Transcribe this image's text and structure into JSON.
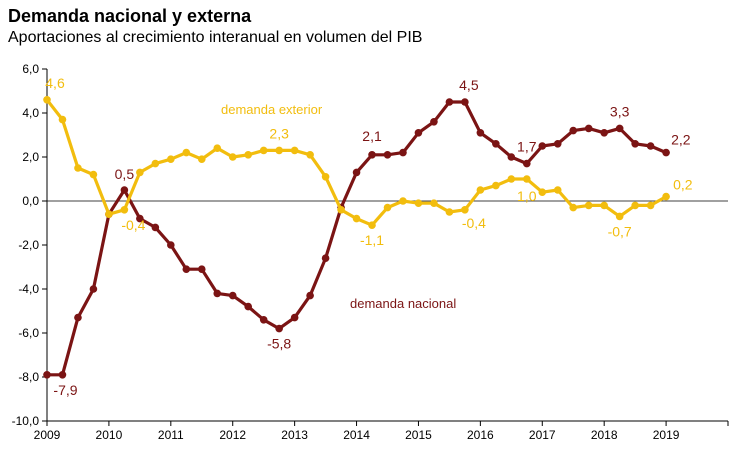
{
  "chart_data": {
    "type": "line",
    "title": "Demanda nacional y externa",
    "subtitle": "Aportaciones al crecimiento interanual en volumen del PIB",
    "xlabel": "",
    "ylabel": "",
    "ylim": [
      -10,
      6
    ],
    "yticks": [
      -10,
      -8,
      -6,
      -4,
      -2,
      0,
      2,
      4,
      6
    ],
    "ytick_labels": [
      "-10,0",
      "-8,0",
      "-6,0",
      "-4,0",
      "-2,0",
      "0,0",
      "2,0",
      "4,0",
      "6,0"
    ],
    "xlim": [
      2009,
      2020
    ],
    "xticks": [
      2009,
      2010,
      2011,
      2012,
      2013,
      2014,
      2015,
      2016,
      2017,
      2018,
      2019
    ],
    "xtick_labels": [
      "2009",
      "2010",
      "2011",
      "2012",
      "2013",
      "2014",
      "2015",
      "2016",
      "2017",
      "2018",
      "2019"
    ],
    "x": [
      2009.0,
      2009.25,
      2009.5,
      2009.75,
      2010.0,
      2010.25,
      2010.5,
      2010.75,
      2011.0,
      2011.25,
      2011.5,
      2011.75,
      2012.0,
      2012.25,
      2012.5,
      2012.75,
      2013.0,
      2013.25,
      2013.5,
      2013.75,
      2014.0,
      2014.25,
      2014.5,
      2014.75,
      2015.0,
      2015.25,
      2015.5,
      2015.75,
      2016.0,
      2016.25,
      2016.5,
      2016.75,
      2017.0,
      2017.25,
      2017.5,
      2017.75,
      2018.0,
      2018.25,
      2018.5,
      2018.75,
      2019.0
    ],
    "series": [
      {
        "name": "demanda nacional",
        "color": "#7b1414",
        "values": [
          -7.9,
          -7.9,
          -5.3,
          -4.0,
          -0.6,
          0.5,
          -0.8,
          -1.2,
          -2.0,
          -3.1,
          -3.1,
          -4.2,
          -4.3,
          -4.8,
          -5.4,
          -5.8,
          -5.3,
          -4.3,
          -2.6,
          -0.3,
          1.3,
          2.1,
          2.1,
          2.2,
          3.1,
          3.6,
          4.5,
          4.5,
          3.1,
          2.6,
          2.0,
          1.7,
          2.5,
          2.6,
          3.2,
          3.3,
          3.1,
          3.3,
          2.6,
          2.5,
          2.2
        ]
      },
      {
        "name": "demanda exterior",
        "color": "#f2bd0e",
        "values": [
          4.6,
          3.7,
          1.5,
          1.2,
          -0.6,
          -0.4,
          1.3,
          1.7,
          1.9,
          2.2,
          1.9,
          2.4,
          2.0,
          2.1,
          2.3,
          2.3,
          2.3,
          2.1,
          1.1,
          -0.4,
          -0.8,
          -1.1,
          -0.3,
          0.0,
          -0.1,
          -0.1,
          -0.5,
          -0.4,
          0.5,
          0.7,
          1.0,
          1.0,
          0.4,
          0.5,
          -0.3,
          -0.2,
          -0.2,
          -0.7,
          -0.2,
          -0.2,
          0.2
        ]
      }
    ],
    "series_labels": {
      "nacional": "demanda nacional",
      "exterior": "demanda exterior"
    },
    "annotations": [
      {
        "text": "-7,9",
        "series": "demanda nacional",
        "x": 2009.25
      },
      {
        "text": "0,5",
        "series": "demanda nacional",
        "x": 2010.25
      },
      {
        "text": "-5,8",
        "series": "demanda nacional",
        "x": 2012.75
      },
      {
        "text": "2,1",
        "series": "demanda nacional",
        "x": 2014.25
      },
      {
        "text": "4,5",
        "series": "demanda nacional",
        "x": 2015.75
      },
      {
        "text": "1,7",
        "series": "demanda nacional",
        "x": 2016.75
      },
      {
        "text": "3,3",
        "series": "demanda nacional",
        "x": 2018.25
      },
      {
        "text": "2,2",
        "series": "demanda nacional",
        "x": 2019.0
      },
      {
        "text": "4,6",
        "series": "demanda exterior",
        "x": 2009.0
      },
      {
        "text": "-0,4",
        "series": "demanda exterior",
        "x": 2010.25
      },
      {
        "text": "2,3",
        "series": "demanda exterior",
        "x": 2012.75
      },
      {
        "text": "-1,1",
        "series": "demanda exterior",
        "x": 2014.25
      },
      {
        "text": "-0,4",
        "series": "demanda exterior",
        "x": 2015.75
      },
      {
        "text": "1,0",
        "series": "demanda exterior",
        "x": 2016.75
      },
      {
        "text": "-0,7",
        "series": "demanda exterior",
        "x": 2018.25
      },
      {
        "text": "0,2",
        "series": "demanda exterior",
        "x": 2019.0
      }
    ]
  }
}
